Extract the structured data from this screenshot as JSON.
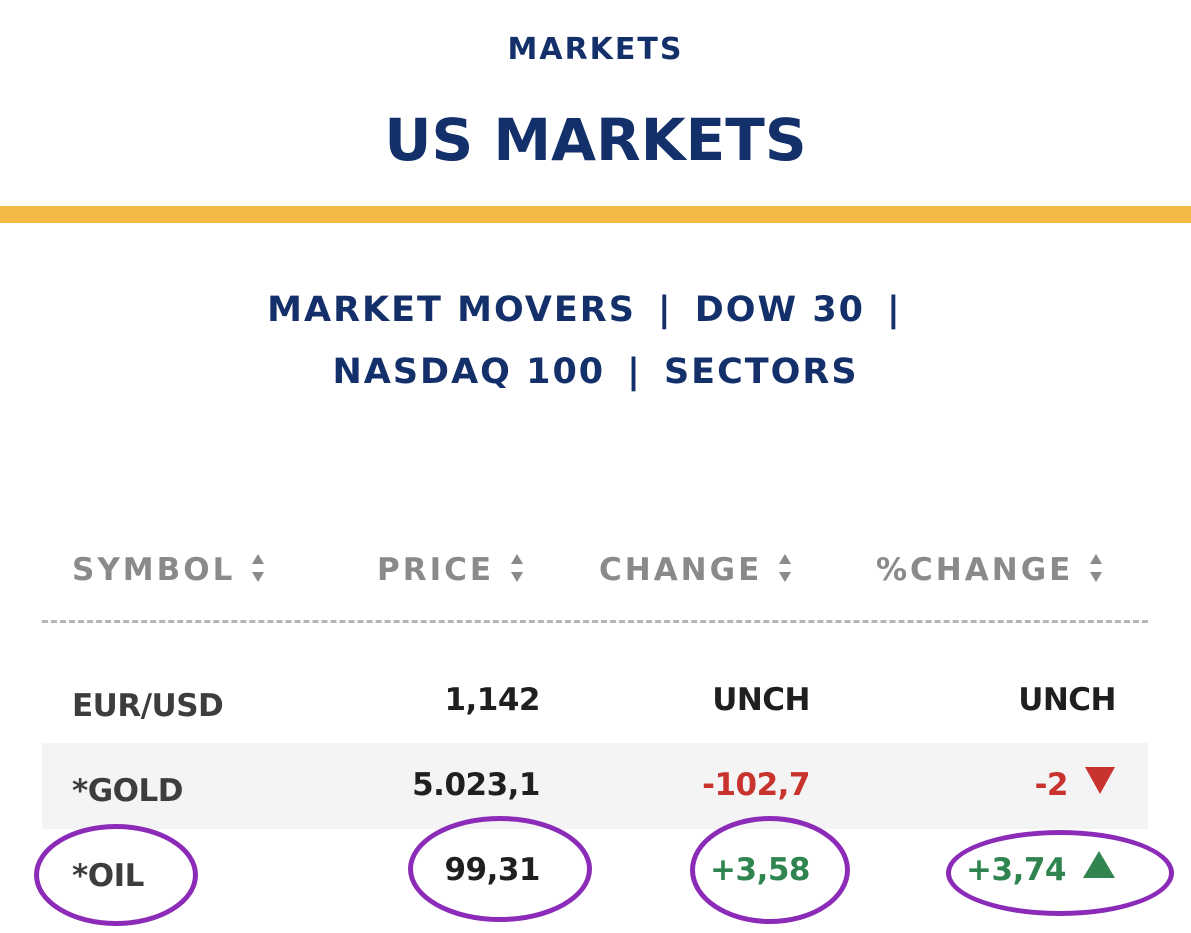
{
  "header": {
    "section": "MARKETS",
    "title": "US MARKETS"
  },
  "subnav": {
    "items": [
      {
        "label": "MARKET MOVERS"
      },
      {
        "label": "DOW 30"
      },
      {
        "label": "NASDAQ 100"
      },
      {
        "label": "SECTORS"
      }
    ],
    "separator": "|"
  },
  "table": {
    "columns": [
      {
        "label": "SYMBOL"
      },
      {
        "label": "PRICE"
      },
      {
        "label": "CHANGE"
      },
      {
        "label": "%CHANGE"
      }
    ],
    "rows": [
      {
        "symbol": "EUR/USD",
        "price": "1,142",
        "change": "UNCH",
        "pct_change": "UNCH",
        "direction": "none"
      },
      {
        "symbol": "*GOLD",
        "price": "5.023,1",
        "change": "-102,7",
        "pct_change": "-2",
        "direction": "down"
      },
      {
        "symbol": "*OIL",
        "price": "99,31",
        "change": "+3,58",
        "pct_change": "+3,74",
        "direction": "up"
      }
    ]
  },
  "icons": {
    "sort": "sort-updown-icon",
    "down": "triangle-down-icon",
    "up": "triangle-up-icon"
  },
  "colors": {
    "navy": "#14306b",
    "accent": "#f2b944",
    "down": "#c8332e",
    "up": "#2f8450",
    "annotation": "#8b2bb8"
  }
}
